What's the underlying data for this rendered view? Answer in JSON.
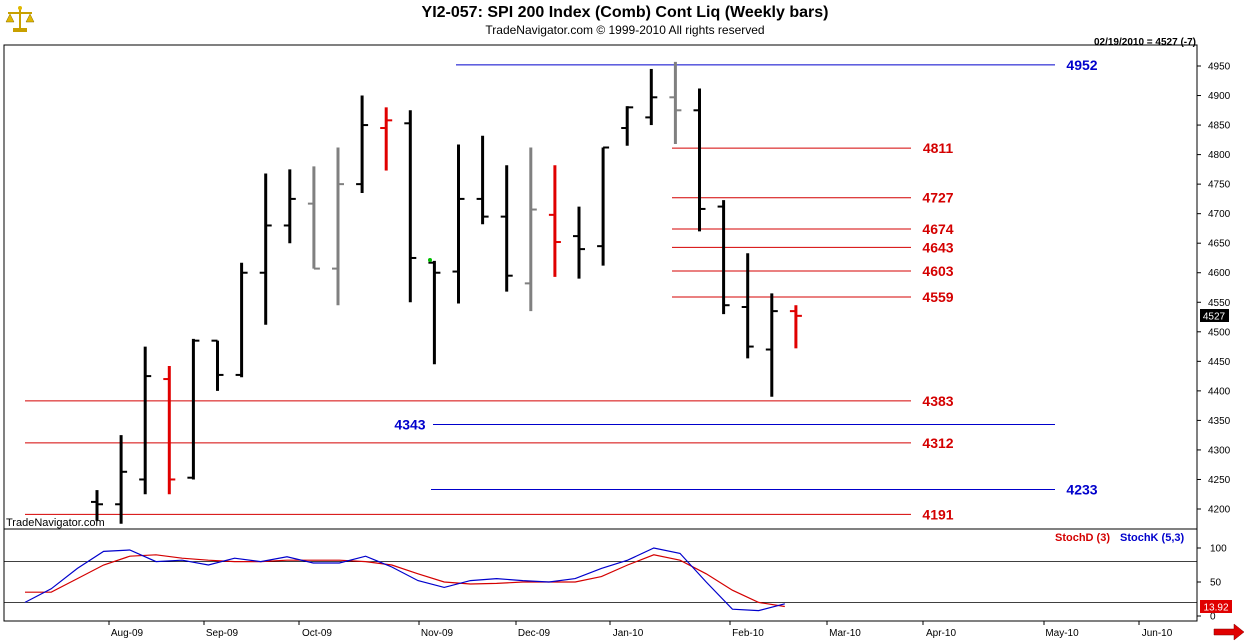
{
  "header": {
    "title": "YI2-057:  SPI 200 Index (Comb) Cont Liq  (Weekly bars)",
    "subtitle": "TradeNavigator.com © 1999-2010 All rights reserved",
    "readout": "02/19/2010 = 4527 (-7)",
    "watermark": "TradeNavigator.com",
    "logo_icon": "scales-icon"
  },
  "colors": {
    "up": "#000000",
    "gray": "#808080",
    "red": "#e00000",
    "blue_level": "#0000cc",
    "red_level": "#d40000",
    "green_dot": "#00c000"
  },
  "chart_data": [
    {
      "type": "ohlc",
      "title": "YI2-057:  SPI 200 Index (Comb) Cont Liq  (Weekly bars)",
      "ylim": [
        4170,
        4970
      ],
      "yticks": [
        4200,
        4250,
        4300,
        4350,
        4400,
        4450,
        4500,
        4550,
        4600,
        4650,
        4700,
        4750,
        4800,
        4850,
        4900,
        4950
      ],
      "last_price_label": "4527",
      "x_labels": [
        "Aug-09",
        "Sep-09",
        "Oct-09",
        "Nov-09",
        "Dec-09",
        "Jan-10",
        "Feb-10",
        "Mar-10",
        "Apr-10",
        "May-10",
        "Jun-10"
      ],
      "bars": [
        {
          "o": 4212,
          "h": 4232,
          "l": 4180,
          "c": 4208,
          "color": "black"
        },
        {
          "o": 4208,
          "h": 4325,
          "l": 4175,
          "c": 4263,
          "color": "black"
        },
        {
          "o": 4250,
          "h": 4475,
          "l": 4225,
          "c": 4425,
          "color": "black"
        },
        {
          "o": 4420,
          "h": 4442,
          "l": 4225,
          "c": 4250,
          "color": "red"
        },
        {
          "o": 4253,
          "h": 4488,
          "l": 4250,
          "c": 4485,
          "color": "black"
        },
        {
          "o": 4485,
          "h": 4480,
          "l": 4400,
          "c": 4427,
          "color": "black"
        },
        {
          "o": 4427,
          "h": 4617,
          "l": 4423,
          "c": 4600,
          "color": "black"
        },
        {
          "o": 4600,
          "h": 4768,
          "l": 4512,
          "c": 4680,
          "color": "black"
        },
        {
          "o": 4680,
          "h": 4775,
          "l": 4650,
          "c": 4725,
          "color": "black"
        },
        {
          "o": 4717,
          "h": 4780,
          "l": 4607,
          "c": 4607,
          "color": "gray"
        },
        {
          "o": 4607,
          "h": 4812,
          "l": 4545,
          "c": 4750,
          "color": "gray"
        },
        {
          "o": 4750,
          "h": 4900,
          "l": 4735,
          "c": 4850,
          "color": "black"
        },
        {
          "o": 4845,
          "h": 4880,
          "l": 4773,
          "c": 4858,
          "color": "red"
        },
        {
          "o": 4853,
          "h": 4875,
          "l": 4550,
          "c": 4625,
          "color": "black"
        },
        {
          "o": 4617,
          "h": 4620,
          "l": 4445,
          "c": 4600,
          "color": "black"
        },
        {
          "o": 4602,
          "h": 4817,
          "l": 4548,
          "c": 4725,
          "color": "black"
        },
        {
          "o": 4725,
          "h": 4832,
          "l": 4682,
          "c": 4695,
          "color": "black"
        },
        {
          "o": 4695,
          "h": 4782,
          "l": 4568,
          "c": 4595,
          "color": "black"
        },
        {
          "o": 4582,
          "h": 4812,
          "l": 4535,
          "c": 4707,
          "color": "gray"
        },
        {
          "o": 4698,
          "h": 4782,
          "l": 4593,
          "c": 4652,
          "color": "red"
        },
        {
          "o": 4662,
          "h": 4712,
          "l": 4590,
          "c": 4640,
          "color": "black"
        },
        {
          "o": 4645,
          "h": 4812,
          "l": 4612,
          "c": 4812,
          "color": "black"
        },
        {
          "o": 4845,
          "h": 4882,
          "l": 4815,
          "c": 4880,
          "color": "black"
        },
        {
          "o": 4863,
          "h": 4945,
          "l": 4850,
          "c": 4897,
          "color": "black"
        },
        {
          "o": 4897,
          "h": 4957,
          "l": 4818,
          "c": 4875,
          "color": "gray"
        },
        {
          "o": 4875,
          "h": 4912,
          "l": 4670,
          "c": 4708,
          "color": "black"
        },
        {
          "o": 4712,
          "h": 4723,
          "l": 4530,
          "c": 4545,
          "color": "black"
        },
        {
          "o": 4542,
          "h": 4633,
          "l": 4455,
          "c": 4475,
          "color": "black"
        },
        {
          "o": 4470,
          "h": 4565,
          "l": 4390,
          "c": 4535,
          "color": "black"
        },
        {
          "o": 4535,
          "h": 4545,
          "l": 4472,
          "c": 4527,
          "color": "red"
        }
      ],
      "levels": [
        {
          "value": 4952,
          "label": "4952",
          "color": "blue"
        },
        {
          "value": 4811,
          "label": "4811",
          "color": "red"
        },
        {
          "value": 4727,
          "label": "4727",
          "color": "red"
        },
        {
          "value": 4674,
          "label": "4674",
          "color": "red"
        },
        {
          "value": 4643,
          "label": "4643",
          "color": "red"
        },
        {
          "value": 4603,
          "label": "4603",
          "color": "red"
        },
        {
          "value": 4559,
          "label": "4559",
          "color": "red"
        },
        {
          "value": 4383,
          "label": "4383",
          "color": "red"
        },
        {
          "value": 4343,
          "label": "4343",
          "color": "blue"
        },
        {
          "value": 4312,
          "label": "4312",
          "color": "red"
        },
        {
          "value": 4233,
          "label": "4233",
          "color": "blue"
        },
        {
          "value": 4191,
          "label": "4191",
          "color": "red"
        }
      ]
    },
    {
      "type": "line",
      "ylim": [
        0,
        110
      ],
      "yticks": [
        0,
        50,
        100
      ],
      "reference_lines": [
        20,
        80
      ],
      "last_value_label": "13.92",
      "series": [
        {
          "name": "StochD (3)",
          "color": "red",
          "values": [
            35,
            35,
            55,
            75,
            88,
            90,
            85,
            82,
            80,
            80,
            82,
            82,
            82,
            80,
            75,
            62,
            50,
            47,
            48,
            50,
            50,
            50,
            58,
            75,
            90,
            82,
            62,
            38,
            20,
            14
          ]
        },
        {
          "name": "StochK (5,3)",
          "color": "blue",
          "values": [
            20,
            40,
            70,
            95,
            97,
            80,
            82,
            75,
            85,
            80,
            87,
            78,
            78,
            88,
            72,
            52,
            42,
            52,
            55,
            52,
            50,
            55,
            70,
            82,
            100,
            92,
            50,
            10,
            8,
            18
          ]
        }
      ]
    }
  ]
}
